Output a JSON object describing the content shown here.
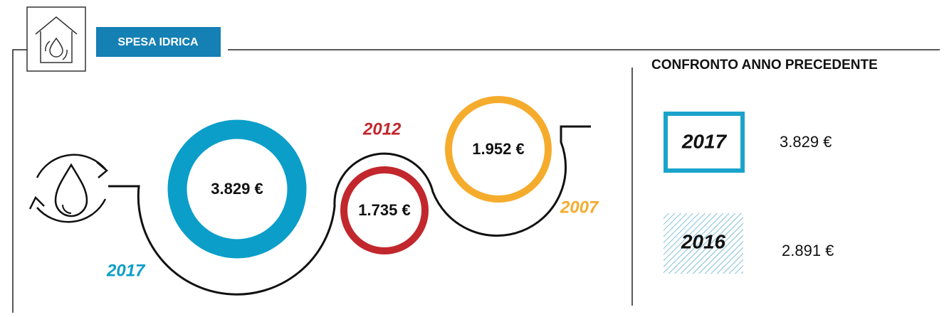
{
  "header": {
    "title": "SPESA IDRICA"
  },
  "circles": [
    {
      "year": "2017",
      "amount": "3.829 €"
    },
    {
      "year": "2012",
      "amount": "1.735 €"
    },
    {
      "year": "2007",
      "amount": "1.952 €"
    }
  ],
  "comparison": {
    "title": "CONFRONTO ANNO PRECEDENTE",
    "rows": [
      {
        "year": "2017",
        "amount": "3.829 €"
      },
      {
        "year": "2016",
        "amount": "2.891 €"
      }
    ]
  }
}
